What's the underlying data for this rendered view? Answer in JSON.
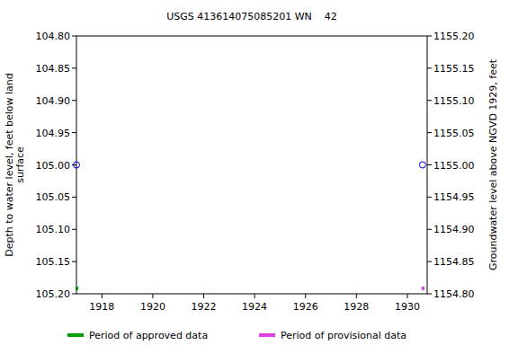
{
  "chart_data": {
    "type": "scatter",
    "title": "USGS 413614075085201 WN    42",
    "y_label": [
      "Depth to water level, feet below land",
      "surface"
    ],
    "y2_label": "Groundwater level above NGVD 1929, feet",
    "xlim": [
      1917.0,
      1930.78
    ],
    "xticks": [
      1918,
      1920,
      1922,
      1924,
      1926,
      1928,
      1930
    ],
    "ylim": [
      105.2,
      104.8
    ],
    "yticks": [
      {
        "value": 104.8,
        "label": "104.80"
      },
      {
        "value": 104.85,
        "label": "104.85"
      },
      {
        "value": 104.9,
        "label": "104.90"
      },
      {
        "value": 104.95,
        "label": "104.95"
      },
      {
        "value": 105.0,
        "label": "105.00"
      },
      {
        "value": 105.05,
        "label": "105.05"
      },
      {
        "value": 105.1,
        "label": "105.10"
      },
      {
        "value": 105.15,
        "label": "105.15"
      },
      {
        "value": 105.2,
        "label": "105.20"
      }
    ],
    "y2lim": [
      1154.8,
      1155.2
    ],
    "y2ticks": [
      {
        "value": 1155.2,
        "label": "1155.20"
      },
      {
        "value": 1155.15,
        "label": "1155.15"
      },
      {
        "value": 1155.1,
        "label": "1155.10"
      },
      {
        "value": 1155.05,
        "label": "1155.05"
      },
      {
        "value": 1155.0,
        "label": "1155.00"
      },
      {
        "value": 1154.95,
        "label": "1154.95"
      },
      {
        "value": 1154.9,
        "label": "1154.90"
      },
      {
        "value": 1154.85,
        "label": "1154.85"
      },
      {
        "value": 1154.8,
        "label": "1154.80"
      }
    ],
    "grid": false,
    "legend": "bottom",
    "series": [
      {
        "type": "scatter",
        "color": "#0000ff",
        "marker": "circle-open",
        "x": [
          1917.0,
          1930.6
        ],
        "values": [
          105.0,
          105.0
        ]
      },
      {
        "name": "Period of approved data",
        "type": "period",
        "color": "#00a000",
        "x": [
          1917.0
        ]
      },
      {
        "name": "Period of provisional data",
        "type": "period",
        "color": "#e040e0",
        "x": [
          1930.6
        ]
      }
    ]
  }
}
